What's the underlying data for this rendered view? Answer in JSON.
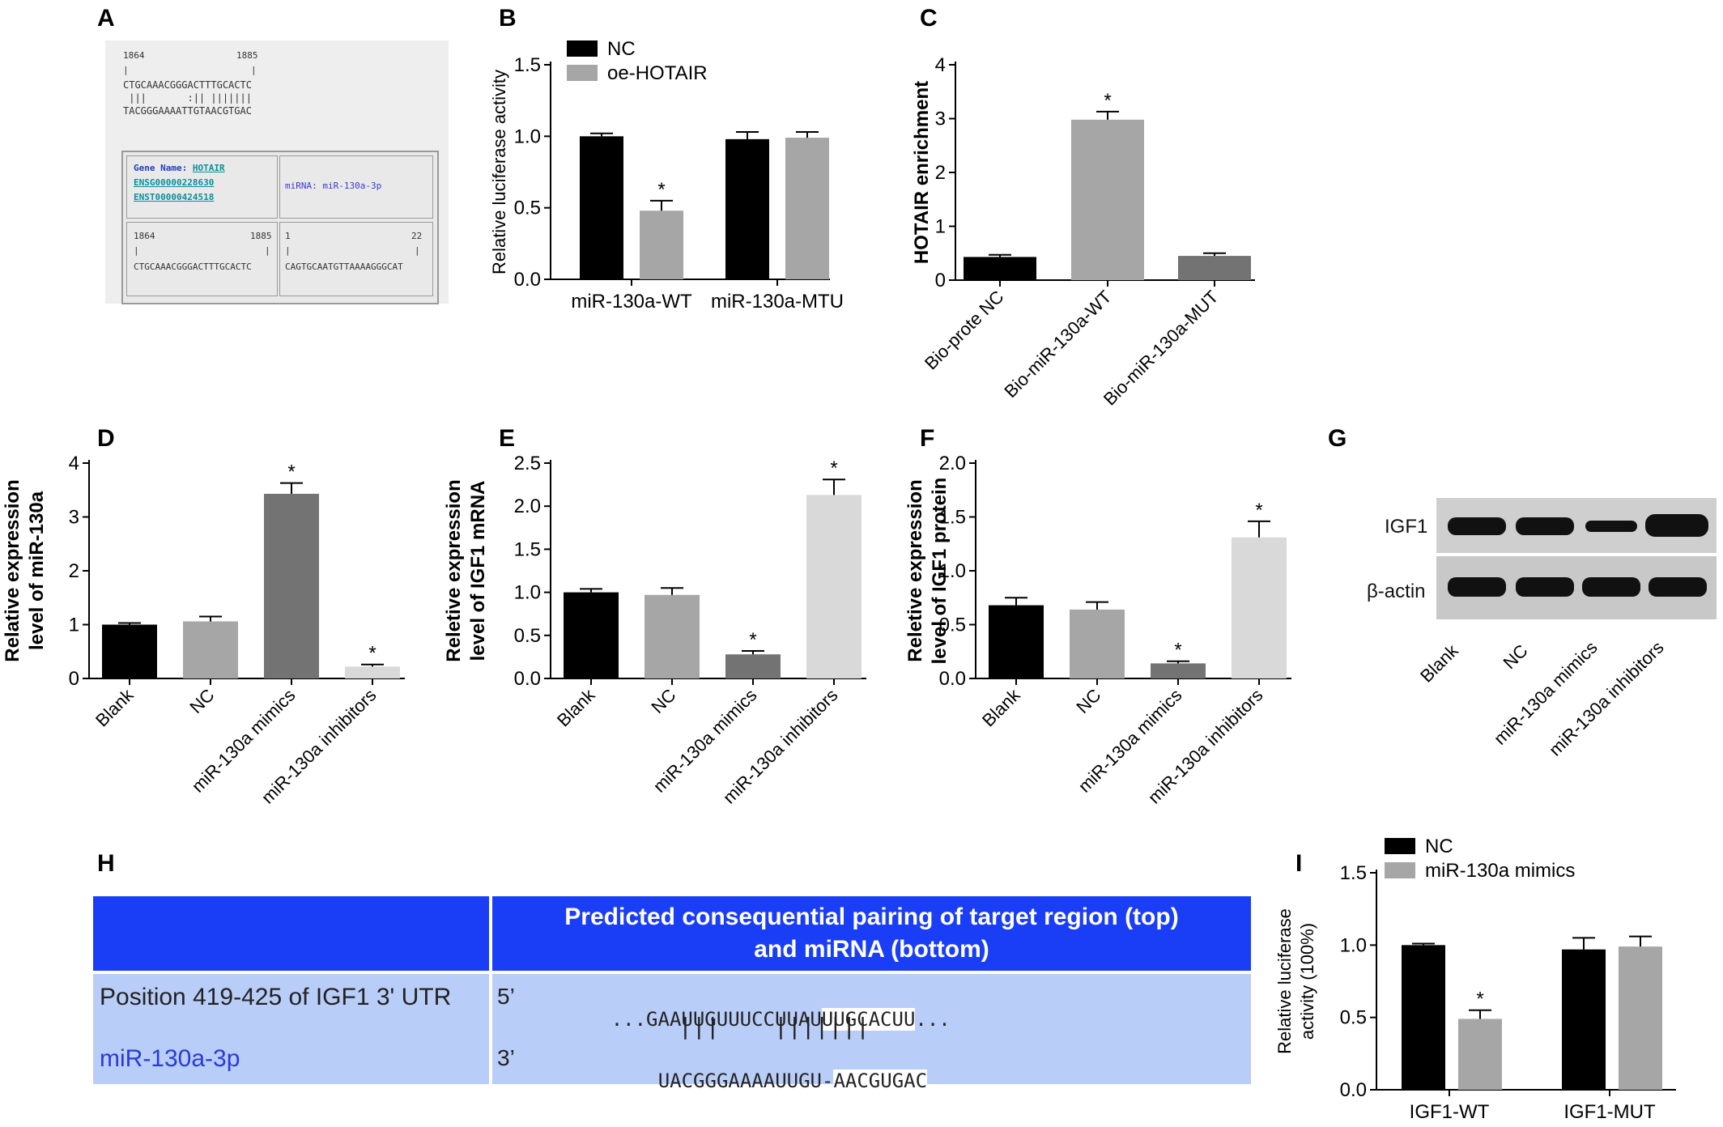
{
  "panels": {
    "a": "A",
    "b": "B",
    "c": "C",
    "d": "D",
    "e": "E",
    "f": "F",
    "g": "G",
    "h": "H",
    "i": "I"
  },
  "panelA": {
    "top_pos_left": "1864",
    "top_pos_right": "1885",
    "top_bar_left": "|",
    "top_bar_right": "|",
    "top_seq": "CTGCAAACGGGACTTTGCACTC",
    "top_match": " |||       :|| |||||||",
    "top_mirna": "TACGGGAAAATTGTAACGTGAC",
    "gene_name_label": "Gene Name:",
    "gene_name": "HOTAIR",
    "ensg": "ENSG00000228630",
    "enst": "ENST00000424518",
    "mirna_label": "miRNA: miR-130a-3p",
    "box_pos_left": "1864",
    "box_pos_right": "1885",
    "box_bar_left": "|",
    "box_bar_right": "|",
    "box_seq": "CTGCAAACGGGACTTTGCACTC",
    "mir_pos_left": "1",
    "mir_pos_right": "22",
    "mir_bar_left": "|",
    "mir_bar_right": "|",
    "mir_seq": "CAGTGCAATGTTAAAAGGGCAT"
  },
  "panelG": {
    "rows": [
      "IGF1",
      "β-actin"
    ],
    "lanes": [
      "Blank",
      "NC",
      "miR-130a mimics",
      "miR-130a inhibitors"
    ],
    "igf1_intensity": [
      0.9,
      0.85,
      0.25,
      1.0
    ],
    "actin_intensity": [
      0.95,
      0.95,
      0.95,
      0.95
    ]
  },
  "panelH": {
    "header": "Predicted consequential pairing of target region (top) and miRNA (bottom)",
    "header_line1": "Predicted consequential pairing of target region (top)",
    "header_line2": "and miRNA (bottom)",
    "row_label": "Position 419-425 of IGF1 3' UTR",
    "mirna_label": "miR-130a-3p",
    "five_prime": "5’",
    "three_prime": "3’",
    "top_pre": "...GAAUUGUUUCCUUAU",
    "top_seed": "UUGCACUU",
    "top_post": "...",
    "pair_marks": "|||    |||||||",
    "bottom_pre": "UACGGGAAAAUUGU-",
    "bottom_seed": "AACGUGAC",
    "header_color": "#1a3ef5",
    "row_color": "#b9cdf9"
  },
  "chart_data": [
    {
      "panel": "B",
      "type": "bar",
      "categories": [
        "miR-130a-WT",
        "miR-130a-MTU"
      ],
      "series": [
        {
          "name": "NC",
          "values": [
            1.0,
            0.98
          ],
          "errors": [
            0.02,
            0.05
          ],
          "color": "#000000"
        },
        {
          "name": "oe-HOTAIR",
          "values": [
            0.48,
            0.99
          ],
          "errors": [
            0.07,
            0.04
          ],
          "color": "#a6a6a6"
        }
      ],
      "ylabel": "Relative luciferase activity",
      "xlabel": "",
      "ylim": [
        0,
        1.5
      ],
      "yticks": [
        "0.0",
        "0.5",
        "1.0",
        "1.5"
      ],
      "annotations": [
        "*"
      ],
      "legend": "top-left"
    },
    {
      "panel": "C",
      "type": "bar",
      "categories": [
        "Bio-prote NC",
        "Bio-miR-130a-WT",
        "Bio-miR-130a-MUT"
      ],
      "values": [
        0.43,
        2.98,
        0.45
      ],
      "errors": [
        0.04,
        0.15,
        0.05
      ],
      "colors": [
        "#000000",
        "#a6a6a6",
        "#737373"
      ],
      "ylabel": "HOTAIR enrichment",
      "xlabel": "",
      "ylim": [
        0,
        4
      ],
      "yticks": [
        "0",
        "1",
        "2",
        "3",
        "4"
      ],
      "annotations": [
        "*"
      ]
    },
    {
      "panel": "D",
      "type": "bar",
      "categories": [
        "Blank",
        "NC",
        "miR-130a mimics",
        "miR-130a inhibitors"
      ],
      "values": [
        1.0,
        1.06,
        3.43,
        0.22
      ],
      "errors": [
        0.03,
        0.09,
        0.2,
        0.04
      ],
      "colors": [
        "#000000",
        "#a6a6a6",
        "#737373",
        "#d9d9d9"
      ],
      "ylabel": "Relative expression level of miR-130a",
      "xlabel": "",
      "ylim": [
        0,
        4
      ],
      "yticks": [
        "0",
        "1",
        "2",
        "3",
        "4"
      ],
      "annotations": [
        "*",
        "*"
      ]
    },
    {
      "panel": "E",
      "type": "bar",
      "categories": [
        "Blank",
        "NC",
        "miR-130a mimics",
        "miR-130a inhibitors"
      ],
      "values": [
        1.0,
        0.97,
        0.28,
        2.13
      ],
      "errors": [
        0.04,
        0.08,
        0.04,
        0.18
      ],
      "colors": [
        "#000000",
        "#a6a6a6",
        "#737373",
        "#d9d9d9"
      ],
      "ylabel": "Reletive expression level of IGF1 mRNA",
      "xlabel": "",
      "ylim": [
        0,
        2.5
      ],
      "yticks": [
        "0.0",
        "0.5",
        "1.0",
        "1.5",
        "2.0",
        "2.5"
      ],
      "annotations": [
        "*",
        "*"
      ]
    },
    {
      "panel": "F",
      "type": "bar",
      "categories": [
        "Blank",
        "NC",
        "miR-130a mimics",
        "miR-130a inhibitors"
      ],
      "values": [
        0.68,
        0.64,
        0.14,
        1.31
      ],
      "errors": [
        0.07,
        0.07,
        0.02,
        0.15
      ],
      "colors": [
        "#000000",
        "#a6a6a6",
        "#737373",
        "#d9d9d9"
      ],
      "ylabel": "Reletive expression level of IGF1 protein",
      "xlabel": "",
      "ylim": [
        0,
        2.0
      ],
      "yticks": [
        "0.0",
        "0.5",
        "1.0",
        "1.5",
        "2.0"
      ],
      "annotations": [
        "*",
        "*"
      ]
    },
    {
      "panel": "I",
      "type": "bar",
      "categories": [
        "IGF1-WT",
        "IGF1-MUT"
      ],
      "series": [
        {
          "name": "NC",
          "values": [
            1.0,
            0.97
          ],
          "errors": [
            0.01,
            0.08
          ],
          "color": "#000000"
        },
        {
          "name": "miR-130a mimics",
          "values": [
            0.49,
            0.99
          ],
          "errors": [
            0.06,
            0.07
          ],
          "color": "#a6a6a6"
        }
      ],
      "ylabel": "Relative luciferase activity (100%)",
      "xlabel": "",
      "ylim": [
        0,
        1.5
      ],
      "yticks": [
        "0.0",
        "0.5",
        "1.0",
        "1.5"
      ],
      "annotations": [
        "*"
      ],
      "legend": "top-left"
    }
  ]
}
